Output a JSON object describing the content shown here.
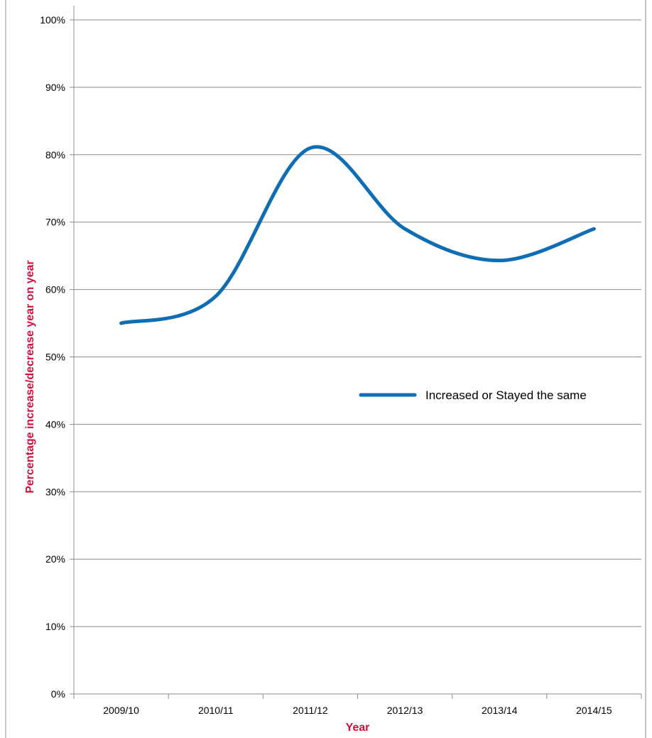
{
  "chart_data": {
    "type": "line",
    "title": "",
    "xlabel": "Year",
    "ylabel": "Percentage increase/decrease year on year",
    "categories": [
      "2009/10",
      "2010/11",
      "2011/12",
      "2012/13",
      "2013/14",
      "2014/15"
    ],
    "series": [
      {
        "name": "Increased or Stayed the same",
        "values": [
          55,
          59,
          81,
          69,
          64.3,
          69
        ],
        "color": "#0f6db3"
      }
    ],
    "ylim": [
      0,
      100
    ],
    "yticks": [
      0,
      10,
      20,
      30,
      40,
      50,
      60,
      70,
      80,
      90,
      100
    ],
    "ytick_labels": [
      "0%",
      "10%",
      "20%",
      "30%",
      "40%",
      "50%",
      "60%",
      "70%",
      "80%",
      "90%",
      "100%"
    ],
    "grid": true,
    "smooth": true,
    "legend_position": "right",
    "axis_title_color": "#d0103a"
  }
}
